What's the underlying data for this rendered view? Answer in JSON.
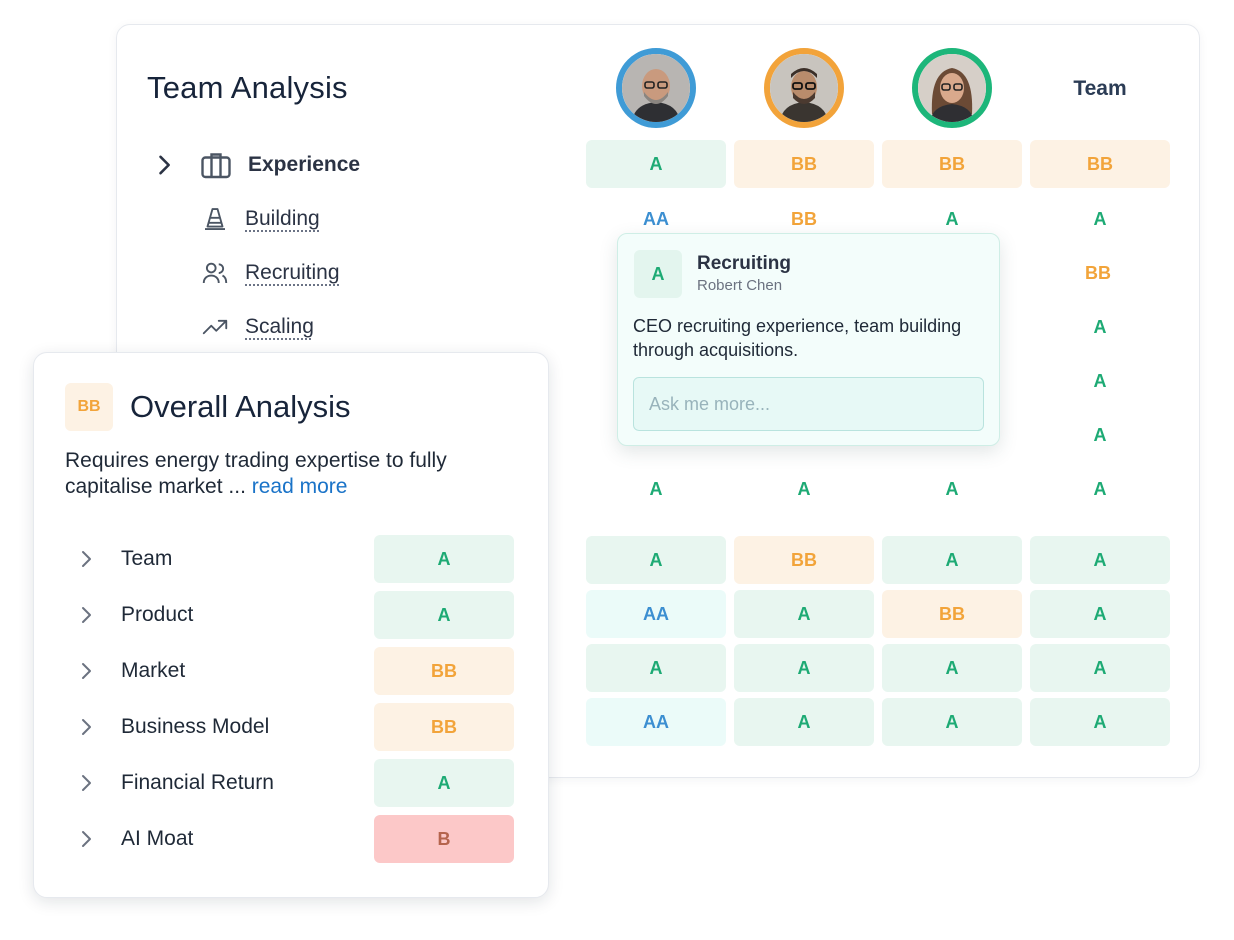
{
  "main": {
    "title": "Team Analysis",
    "team_header": "Team",
    "experience": {
      "label": "Experience",
      "grades": [
        "A",
        "BB",
        "BB",
        "BB"
      ],
      "subrows": [
        {
          "label": "Building",
          "icon": "traffic-cone-icon",
          "grades": [
            "AA",
            "BB",
            "A",
            "A"
          ]
        },
        {
          "label": "Recruiting",
          "icon": "users-icon",
          "grades": [
            "",
            "",
            "",
            "BB"
          ]
        },
        {
          "label": "Scaling",
          "icon": "trending-up-icon",
          "grades": [
            "",
            "",
            "",
            "A"
          ]
        }
      ],
      "extra_team_grades": [
        "A",
        "A"
      ],
      "last_row_grades": [
        "A",
        "A",
        "A",
        "A"
      ]
    },
    "category_grid": [
      [
        "A",
        "BB",
        "A",
        "A"
      ],
      [
        "AA",
        "A",
        "BB",
        "A"
      ],
      [
        "A",
        "A",
        "A",
        "A"
      ],
      [
        "AA",
        "A",
        "A",
        "A"
      ]
    ]
  },
  "popover": {
    "grade": "A",
    "title": "Recruiting",
    "person": "Robert Chen",
    "body": "CEO recruiting experience, team building through acquisitions.",
    "input_placeholder": "Ask me more..."
  },
  "overall": {
    "grade": "BB",
    "title": "Overall Analysis",
    "description": "Requires energy trading expertise to fully capitalise market ...",
    "read_more": "read more",
    "categories": [
      {
        "label": "Team",
        "grade": "A"
      },
      {
        "label": "Product",
        "grade": "A"
      },
      {
        "label": "Market",
        "grade": "BB"
      },
      {
        "label": "Business Model",
        "grade": "BB"
      },
      {
        "label": "Financial Return",
        "grade": "A"
      },
      {
        "label": "AI Moat",
        "grade": "B"
      }
    ]
  },
  "colors": {
    "avatar_ring_1": "#3f9bd6",
    "avatar_ring_2": "#f2a33a",
    "avatar_ring_3": "#1db67a",
    "grade_A": "#1daa74",
    "grade_BB": "#f2a43a",
    "grade_AA": "#3c8fd1",
    "grade_B": "#b5644d"
  }
}
